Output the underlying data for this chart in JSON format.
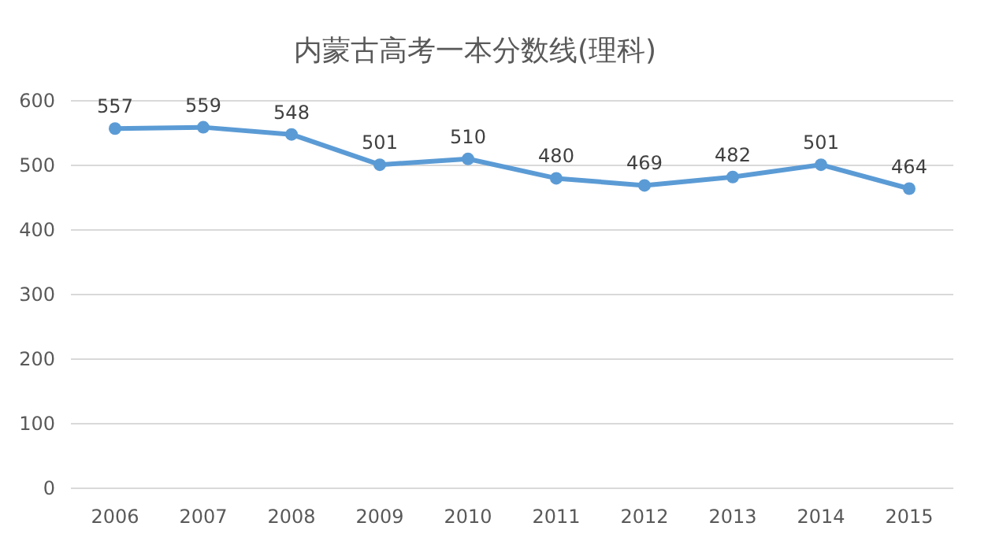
{
  "chart_data": {
    "type": "line",
    "title": "内蒙古高考一本分数线(理科)",
    "categories": [
      "2006",
      "2007",
      "2008",
      "2009",
      "2010",
      "2011",
      "2012",
      "2013",
      "2014",
      "2015"
    ],
    "series": [
      {
        "color": "#5b9bd5",
        "values": [
          557,
          559,
          548,
          501,
          510,
          480,
          469,
          482,
          501,
          464
        ]
      }
    ],
    "ylim": [
      0,
      600
    ],
    "yticks": [
      0,
      100,
      200,
      300,
      400,
      500,
      600
    ],
    "grid": "y",
    "marker": "circle",
    "data_labels": true
  }
}
